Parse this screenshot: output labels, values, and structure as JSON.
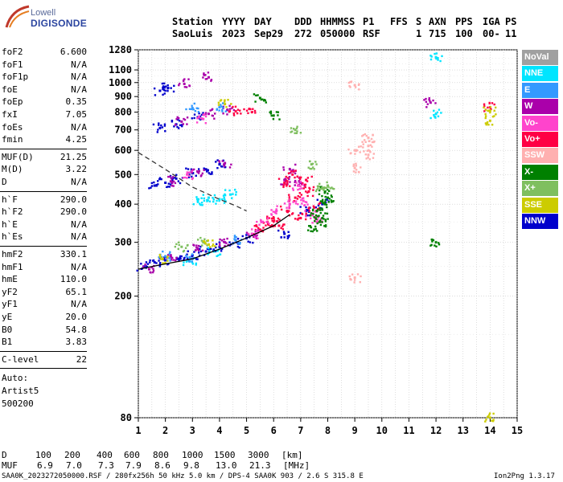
{
  "logo": {
    "line1": "Lowell",
    "line2": "DIGISONDE"
  },
  "header": {
    "labels": [
      "Station",
      "YYYY",
      "DAY",
      "DDD",
      "HHMMSS",
      "P1",
      "FFS",
      "S",
      "AXN",
      "PPS",
      "IGA",
      "PS"
    ],
    "values": [
      "SaoLuis",
      "2023",
      "Sep29",
      "272",
      "050000",
      "RSF",
      "1",
      "715",
      "100",
      "00-",
      "11"
    ]
  },
  "params": {
    "group1": [
      {
        "k": "foF2",
        "v": "6.600"
      },
      {
        "k": "foF1",
        "v": "N/A"
      },
      {
        "k": "foF1p",
        "v": "N/A"
      },
      {
        "k": "foE",
        "v": "N/A"
      },
      {
        "k": "foEp",
        "v": "0.35"
      },
      {
        "k": "fxI",
        "v": "7.05"
      },
      {
        "k": "foEs",
        "v": "N/A"
      },
      {
        "k": "fmin",
        "v": "4.25"
      }
    ],
    "group2": [
      {
        "k": "MUF(D)",
        "v": "21.25"
      },
      {
        "k": "M(D)",
        "v": "3.22"
      },
      {
        "k": "D",
        "v": "N/A"
      }
    ],
    "group3": [
      {
        "k": "h`F",
        "v": "290.0"
      },
      {
        "k": "h`F2",
        "v": "290.0"
      },
      {
        "k": "h`E",
        "v": "N/A"
      },
      {
        "k": "h`Es",
        "v": "N/A"
      }
    ],
    "group4": [
      {
        "k": "hmF2",
        "v": "330.1"
      },
      {
        "k": "hmF1",
        "v": "N/A"
      },
      {
        "k": "hmE",
        "v": "110.0"
      },
      {
        "k": "yF2",
        "v": "65.1"
      },
      {
        "k": "yF1",
        "v": "N/A"
      },
      {
        "k": "yE",
        "v": "20.0"
      },
      {
        "k": "B0",
        "v": "54.8"
      },
      {
        "k": "B1",
        "v": "3.83"
      }
    ],
    "group5": [
      {
        "k": "C-level",
        "v": "22"
      }
    ],
    "auto": [
      "Auto:",
      "Artist5",
      "500200"
    ]
  },
  "legend": [
    {
      "label": "NoVal",
      "color": "#a0a0a0",
      "text_color": "#ffffff"
    },
    {
      "label": "NNE",
      "color": "#00e5ff",
      "text_color": "#ffffff"
    },
    {
      "label": "E",
      "color": "#3399ff",
      "text_color": "#ffffff"
    },
    {
      "label": "W",
      "color": "#aa00aa",
      "text_color": "#ffffff"
    },
    {
      "label": "Vo-",
      "color": "#ff44cc",
      "text_color": "#ffffff"
    },
    {
      "label": "Vo+",
      "color": "#ff0044",
      "text_color": "#ffffff"
    },
    {
      "label": "SSW",
      "color": "#ffb0b0",
      "text_color": "#ffffff"
    },
    {
      "label": "X-",
      "color": "#008000",
      "text_color": "#ffffff"
    },
    {
      "label": "X+",
      "color": "#7fbf5f",
      "text_color": "#ffffff"
    },
    {
      "label": "SSE",
      "color": "#cccc00",
      "text_color": "#ffffff"
    },
    {
      "label": "NNW",
      "color": "#0000cc",
      "text_color": "#ffffff"
    }
  ],
  "bottom": {
    "d_label": "D",
    "d_values": [
      "100",
      "200",
      "400",
      "600",
      "800",
      "1000",
      "1500",
      "3000",
      "[km]"
    ],
    "muf_label": "MUF",
    "muf_values": [
      "6.9",
      "7.0",
      "7.3",
      "7.9",
      "8.6",
      "9.8",
      "13.0",
      "21.3",
      "[MHz]"
    ],
    "footer_left": "SAA0K_2023272050000.RSF / 280fx256h 50 kHz 5.0 km / DPS-4 SAA0K 903 / 2.6 S 315.8 E",
    "footer_right": "Ion2Png 1.3.17"
  },
  "chart_data": {
    "type": "scatter",
    "xlim": [
      1,
      15
    ],
    "ylim": [
      80,
      1280
    ],
    "yscale": "log",
    "x_ticks": [
      1,
      2,
      3,
      4,
      5,
      6,
      7,
      8,
      9,
      10,
      11,
      12,
      13,
      14,
      15
    ],
    "y_ticks": [
      80,
      200,
      300,
      400,
      500,
      600,
      700,
      800,
      900,
      1000,
      1100,
      1280
    ],
    "grid": true,
    "series": [
      {
        "legend_label": "NNW",
        "color": "#0000cc",
        "points": [
          [
            1.2,
            250
          ],
          [
            1.6,
            258
          ],
          [
            2.0,
            262
          ],
          [
            2.5,
            265
          ],
          [
            3.0,
            272
          ],
          [
            3.5,
            280
          ],
          [
            4.0,
            290
          ],
          [
            4.5,
            298
          ],
          [
            5.0,
            310
          ],
          [
            1.6,
            460
          ],
          [
            2.0,
            470
          ],
          [
            2.4,
            485
          ],
          [
            3.0,
            505
          ],
          [
            3.5,
            520
          ],
          [
            4.0,
            540
          ],
          [
            1.8,
            710
          ],
          [
            2.4,
            730
          ],
          [
            3.2,
            770
          ],
          [
            1.8,
            940
          ],
          [
            2.1,
            960
          ],
          [
            7.2,
            380
          ],
          [
            7.8,
            400
          ],
          [
            6.4,
            320
          ]
        ]
      },
      {
        "legend_label": "W",
        "color": "#aa00aa",
        "points": [
          [
            1.4,
            245
          ],
          [
            2.2,
            268
          ],
          [
            3.2,
            285
          ],
          [
            4.2,
            300
          ],
          [
            5.2,
            318
          ],
          [
            2.2,
            475
          ],
          [
            3.2,
            510
          ],
          [
            4.2,
            545
          ],
          [
            2.6,
            745
          ],
          [
            3.6,
            790
          ],
          [
            4.3,
            815
          ],
          [
            2.7,
            990
          ],
          [
            3.6,
            1040
          ],
          [
            6.4,
            480
          ],
          [
            6.6,
            520
          ],
          [
            7.0,
            470
          ],
          [
            11.8,
            860
          ]
        ]
      },
      {
        "legend_label": "Vo+",
        "color": "#ff0044",
        "points": [
          [
            5.5,
            330
          ],
          [
            5.8,
            345
          ],
          [
            6.0,
            360
          ],
          [
            6.2,
            340
          ],
          [
            6.5,
            380
          ],
          [
            6.8,
            420
          ],
          [
            7.0,
            360
          ],
          [
            7.3,
            440
          ],
          [
            7.5,
            390
          ],
          [
            6.4,
            470
          ],
          [
            6.7,
            500
          ],
          [
            7.2,
            480
          ],
          [
            4.6,
            805
          ],
          [
            5.1,
            820
          ],
          [
            14.0,
            830
          ]
        ]
      },
      {
        "legend_label": "Vo-",
        "color": "#ff44cc",
        "points": [
          [
            5.2,
            320
          ],
          [
            5.6,
            350
          ],
          [
            6.1,
            380
          ],
          [
            6.6,
            400
          ],
          [
            7.1,
            410
          ],
          [
            7.4,
            370
          ],
          [
            7.6,
            350
          ],
          [
            6.9,
            460
          ],
          [
            2.8,
            500
          ],
          [
            3.4,
            760
          ]
        ]
      },
      {
        "legend_label": "X-",
        "color": "#008000",
        "points": [
          [
            7.6,
            380
          ],
          [
            7.8,
            360
          ],
          [
            7.9,
            400
          ],
          [
            8.0,
            420
          ],
          [
            7.7,
            350
          ],
          [
            7.9,
            440
          ],
          [
            7.5,
            330
          ],
          [
            12.0,
            300
          ],
          [
            5.5,
            890
          ],
          [
            6.0,
            780
          ]
        ]
      },
      {
        "legend_label": "X+",
        "color": "#7fbf5f",
        "points": [
          [
            7.8,
            450
          ],
          [
            8.0,
            460
          ],
          [
            2.6,
            290
          ],
          [
            3.4,
            300
          ],
          [
            7.4,
            540
          ],
          [
            6.8,
            700
          ]
        ]
      },
      {
        "legend_label": "NNE",
        "color": "#00e5ff",
        "points": [
          [
            3.2,
            410
          ],
          [
            3.6,
            420
          ],
          [
            4.0,
            415
          ],
          [
            4.4,
            430
          ],
          [
            2.9,
            260
          ],
          [
            3.8,
            280
          ],
          [
            12.0,
            1210
          ],
          [
            12.0,
            790
          ]
        ]
      },
      {
        "legend_label": "E",
        "color": "#3399ff",
        "points": [
          [
            2.0,
            270
          ],
          [
            3.0,
            265
          ],
          [
            4.6,
            305
          ],
          [
            3.0,
            825
          ],
          [
            4.0,
            830
          ]
        ]
      },
      {
        "legend_label": "SSE",
        "color": "#cccc00",
        "points": [
          [
            14.0,
            750
          ],
          [
            14.0,
            810
          ],
          [
            14.0,
            80
          ],
          [
            1.9,
            265
          ],
          [
            3.6,
            295
          ],
          [
            4.2,
            850
          ]
        ]
      },
      {
        "legend_label": "SSW",
        "color": "#ffb0b0",
        "points": [
          [
            9.5,
            580
          ],
          [
            9.5,
            620
          ],
          [
            9.5,
            660
          ],
          [
            9.0,
            600
          ],
          [
            9.0,
            525
          ],
          [
            9.0,
            230
          ],
          [
            9.0,
            980
          ]
        ]
      }
    ],
    "curves": [
      {
        "style": "dashed",
        "color": "#333333",
        "x": [
          1.0,
          2.0,
          3.0,
          4.0,
          4.6,
          5.0
        ],
        "y": [
          590,
          520,
          455,
          415,
          395,
          380
        ]
      },
      {
        "style": "solid",
        "color": "#000000",
        "x": [
          1.0,
          2.0,
          3.0,
          4.0,
          5.0,
          6.0,
          6.6
        ],
        "y": [
          245,
          255,
          265,
          285,
          310,
          340,
          370
        ]
      }
    ]
  }
}
